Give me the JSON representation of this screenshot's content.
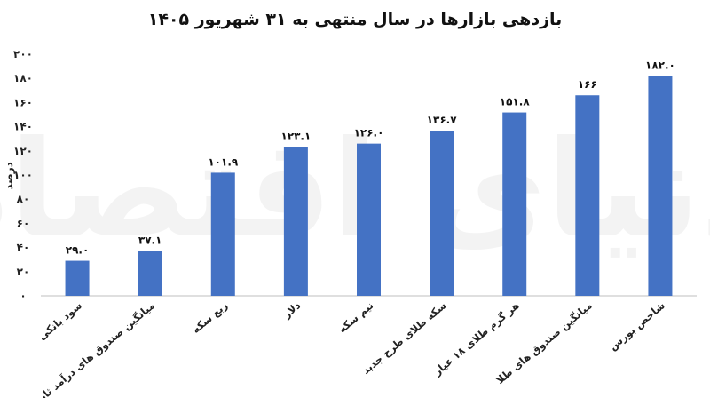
{
  "chart_data": {
    "type": "bar",
    "title": "بازدهی بازارها در سال منتهی به ۳۱ شهریور ۱۴۰۵",
    "ylabel": "درصد",
    "xlabel": "",
    "ylim": [
      0,
      200
    ],
    "yticks": [
      "۰",
      "۲۰",
      "۴۰",
      "۶۰",
      "۸۰",
      "۱۰۰",
      "۱۲۰",
      "۱۴۰",
      "۱۶۰",
      "۱۸۰",
      "۲۰۰"
    ],
    "ytick_values": [
      0,
      20,
      40,
      60,
      80,
      100,
      120,
      140,
      160,
      180,
      200
    ],
    "grid": false,
    "categories": [
      "سود بانکی",
      "میانگین صندوق های درآمد ثابت",
      "ربع سکه",
      "دلار",
      "نیم سکه",
      "سکه طلای طرح جدید",
      "هر گرم طلای ۱۸ عیار",
      "میانگین صندوق های طلا",
      "شاخص بورس"
    ],
    "values": [
      29.0,
      37.1,
      101.9,
      123.1,
      126.0,
      136.7,
      151.8,
      166,
      182.0
    ],
    "data_labels": [
      "۲۹.۰",
      "۳۷.۱",
      "۱۰۱.۹",
      "۱۲۳.۱",
      "۱۲۶.۰",
      "۱۳۶.۷",
      "۱۵۱.۸",
      "۱۶۶",
      "۱۸۲.۰"
    ],
    "bar_color": "#4472C4"
  },
  "watermark": "دنیای اقتصاد"
}
